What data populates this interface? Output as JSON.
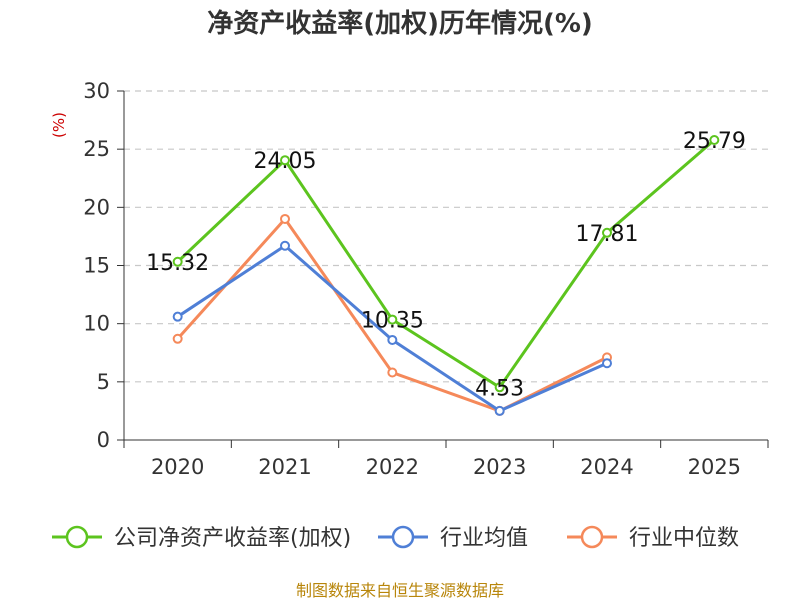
{
  "chart_data": {
    "type": "line",
    "title": "净资产收益率(加权)历年情况(%)",
    "ylabel": "(%)",
    "xlabel": "",
    "categories": [
      "2020",
      "2021",
      "2022",
      "2023",
      "2024",
      "2025"
    ],
    "ylim": [
      0,
      30
    ],
    "yticks": [
      "0",
      "5",
      "10",
      "15",
      "20",
      "25",
      "30"
    ],
    "grid": true,
    "legend_position": "bottom",
    "series": [
      {
        "name": "公司净资产收益率(加权)",
        "color": "#5cc41e",
        "values": [
          15.32,
          24.05,
          10.35,
          4.53,
          17.81,
          25.79
        ],
        "labels": [
          "15.32",
          "24.05",
          "10.35",
          "4.53",
          "17.81",
          "25.79"
        ]
      },
      {
        "name": "行业均值",
        "color": "#4f7fd6",
        "values": [
          10.6,
          16.7,
          8.6,
          2.5,
          6.6,
          null
        ]
      },
      {
        "name": "行业中位数",
        "color": "#f5895a",
        "values": [
          8.7,
          19.0,
          5.8,
          2.5,
          7.1,
          null
        ]
      }
    ],
    "source": "制图数据来自恒生聚源数据库"
  }
}
